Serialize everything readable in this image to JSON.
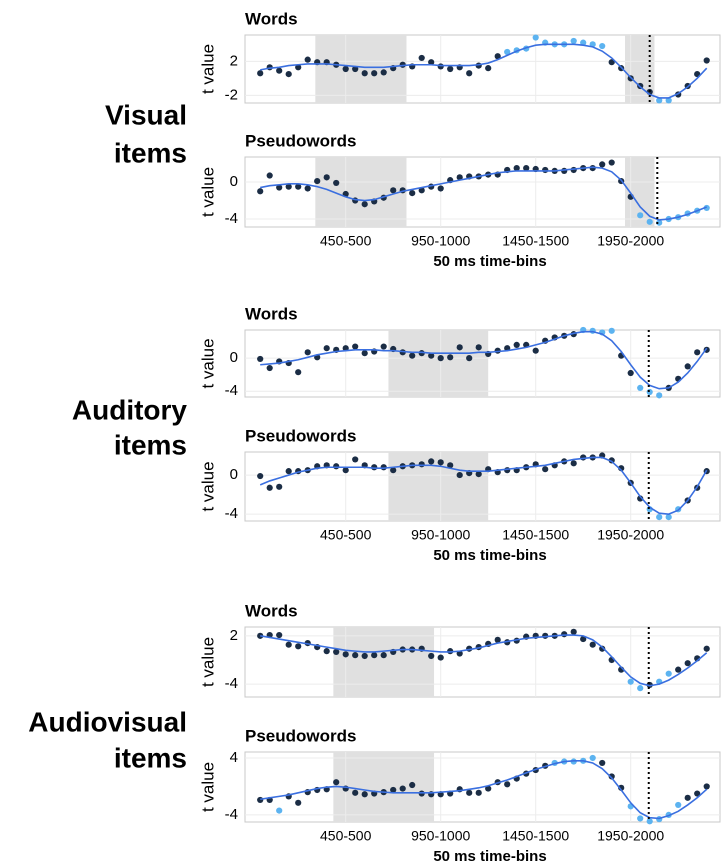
{
  "groups": [
    {
      "label": [
        "Visual",
        "items"
      ]
    },
    {
      "label": [
        "Auditory",
        "items"
      ]
    },
    {
      "label": [
        "Audiovisual",
        "items"
      ]
    }
  ],
  "chart_data": [
    {
      "type": "scatter",
      "title": "Words",
      "ylabel": "t value",
      "xlim": [
        -0.6,
        49.4
      ],
      "ylim": [
        -2.9,
        5.1
      ],
      "yticks": [
        -2,
        2
      ],
      "xgrid": [
        10,
        20,
        30,
        40
      ],
      "shaded": [
        [
          6.8,
          16.4
        ],
        [
          39.4,
          42.5
        ]
      ],
      "vline": 42,
      "x": [
        1,
        2,
        3,
        4,
        5,
        6,
        7,
        8,
        9,
        10,
        11,
        12,
        13,
        14,
        15,
        16,
        17,
        18,
        19,
        20,
        21,
        22,
        23,
        24,
        25,
        26,
        27,
        28,
        29,
        30,
        31,
        32,
        33,
        34,
        35,
        36,
        37,
        38,
        39,
        40,
        41,
        42,
        43,
        44,
        45,
        46,
        47,
        48
      ],
      "series": [
        {
          "color": "#1b2d45",
          "highlight_color": "#5cb3f0",
          "highlight": [
            26,
            27,
            28,
            29,
            30,
            31,
            32,
            33,
            34,
            35,
            36,
            42,
            43
          ],
          "values": [
            0.6,
            1.3,
            0.9,
            0.5,
            1.3,
            2.2,
            1.9,
            1.9,
            1.6,
            1.1,
            1.1,
            0.6,
            0.6,
            0.7,
            1.2,
            1.6,
            1.4,
            2.4,
            1.9,
            1.4,
            1.1,
            1.3,
            0.6,
            1.5,
            1.2,
            2.6,
            3.1,
            3.3,
            3.5,
            4.8,
            4.2,
            4.0,
            4.0,
            4.4,
            4.2,
            4.0,
            3.8,
            1.9,
            1.2,
            0.0,
            -0.9,
            -1.6,
            -2.6,
            -2.6,
            -1.9,
            -0.9,
            0.5,
            2.1
          ]
        },
        {
          "style": "line",
          "color": "#3a6fe0",
          "values": [
            1.0,
            1.2,
            1.3,
            1.5,
            1.6,
            1.7,
            1.7,
            1.7,
            1.6,
            1.5,
            1.4,
            1.3,
            1.3,
            1.3,
            1.4,
            1.5,
            1.6,
            1.6,
            1.6,
            1.5,
            1.5,
            1.5,
            1.5,
            1.6,
            1.8,
            2.2,
            2.7,
            3.2,
            3.6,
            3.9,
            4.0,
            4.0,
            4.0,
            4.0,
            3.9,
            3.7,
            3.2,
            2.4,
            1.3,
            0.1,
            -1.0,
            -1.9,
            -2.3,
            -2.3,
            -1.8,
            -1.0,
            0.0,
            1.2
          ]
        }
      ]
    },
    {
      "type": "scatter",
      "title": "Pseudowords",
      "ylabel": "t value",
      "xlabel": "50 ms time-bins",
      "xlim": [
        -0.6,
        49.4
      ],
      "ylim": [
        -4.86,
        2.7
      ],
      "yticks": [
        -4,
        0
      ],
      "xticks": [
        {
          "value": 10,
          "label": "450-500"
        },
        {
          "value": 20,
          "label": "950-1000"
        },
        {
          "value": 30,
          "label": "1450-1500"
        },
        {
          "value": 40,
          "label": "1950-2000"
        }
      ],
      "shaded": [
        [
          6.8,
          16.4
        ],
        [
          39.4,
          42.5
        ]
      ],
      "vline": 42.8,
      "x": [
        1,
        2,
        3,
        4,
        5,
        6,
        7,
        8,
        9,
        10,
        11,
        12,
        13,
        14,
        15,
        16,
        17,
        18,
        19,
        20,
        21,
        22,
        23,
        24,
        25,
        26,
        27,
        28,
        29,
        30,
        31,
        32,
        33,
        34,
        35,
        36,
        37,
        38,
        39,
        40,
        41,
        42,
        43,
        44,
        45,
        46,
        47,
        48
      ],
      "series": [
        {
          "color": "#1b2d45",
          "highlight_color": "#5cb3f0",
          "highlight": [
            40,
            41,
            42,
            43,
            44,
            45,
            46,
            47
          ],
          "values": [
            -1.0,
            0.7,
            -0.6,
            -0.5,
            -0.5,
            -0.7,
            0.1,
            0.5,
            -0.1,
            -1.3,
            -2.0,
            -2.4,
            -2.1,
            -1.7,
            -0.9,
            -0.9,
            -1.2,
            -0.9,
            -0.5,
            -0.7,
            0.2,
            0.5,
            0.6,
            0.6,
            0.8,
            0.8,
            1.3,
            1.5,
            1.5,
            1.4,
            1.3,
            1.2,
            1.2,
            1.3,
            1.5,
            1.5,
            1.9,
            2.1,
            0.1,
            -1.6,
            -3.6,
            -4.3,
            -4.4,
            -4.0,
            -3.8,
            -3.4,
            -3.1,
            -2.8
          ]
        },
        {
          "style": "line",
          "color": "#3a6fe0",
          "values": [
            -0.6,
            -0.4,
            -0.3,
            -0.2,
            -0.2,
            -0.3,
            -0.5,
            -0.8,
            -1.2,
            -1.6,
            -1.9,
            -2.0,
            -1.9,
            -1.6,
            -1.3,
            -1.0,
            -0.8,
            -0.6,
            -0.4,
            -0.2,
            0.0,
            0.2,
            0.4,
            0.6,
            0.8,
            1.0,
            1.1,
            1.2,
            1.2,
            1.2,
            1.2,
            1.2,
            1.3,
            1.4,
            1.5,
            1.6,
            1.5,
            1.1,
            0.2,
            -1.2,
            -2.7,
            -3.7,
            -4.1,
            -4.0,
            -3.8,
            -3.5,
            -3.1,
            -2.7
          ]
        }
      ]
    },
    {
      "type": "scatter",
      "title": "Words",
      "ylabel": "t value",
      "xlim": [
        -0.6,
        49.4
      ],
      "ylim": [
        -4.7,
        3.4
      ],
      "yticks": [
        -4,
        0
      ],
      "xgrid": [
        10,
        20,
        30,
        40
      ],
      "shaded": [
        [
          14.5,
          25
        ]
      ],
      "vline": 41.9,
      "x": [
        1,
        2,
        3,
        4,
        5,
        6,
        7,
        8,
        9,
        10,
        11,
        12,
        13,
        14,
        15,
        16,
        17,
        18,
        19,
        20,
        21,
        22,
        23,
        24,
        25,
        26,
        27,
        28,
        29,
        30,
        31,
        32,
        33,
        34,
        35,
        36,
        37,
        38,
        39,
        40,
        41,
        42,
        43,
        44,
        45,
        46,
        47,
        48
      ],
      "series": [
        {
          "color": "#1b2d45",
          "highlight_color": "#5cb3f0",
          "highlight": [
            34,
            35,
            36,
            37,
            40,
            41,
            42
          ],
          "values": [
            -0.1,
            -1.2,
            -0.4,
            -0.6,
            -1.7,
            0.7,
            0.1,
            1.2,
            1.0,
            1.2,
            1.4,
            0.6,
            0.8,
            1.4,
            1.1,
            0.7,
            0.3,
            0.6,
            0.3,
            0.0,
            0.1,
            1.3,
            0.0,
            1.3,
            0.5,
            0.9,
            1.2,
            1.6,
            1.6,
            0.9,
            2.1,
            2.5,
            2.7,
            2.9,
            3.4,
            3.3,
            3.1,
            3.3,
            0.3,
            -1.8,
            -3.6,
            -4.1,
            -4.5,
            -3.6,
            -2.5,
            -1.0,
            0.7,
            1.0
          ]
        },
        {
          "style": "line",
          "color": "#3a6fe0",
          "values": [
            -0.8,
            -0.7,
            -0.6,
            -0.4,
            -0.2,
            0.1,
            0.4,
            0.6,
            0.8,
            0.9,
            1.0,
            1.0,
            1.0,
            0.9,
            0.9,
            0.8,
            0.7,
            0.7,
            0.6,
            0.6,
            0.6,
            0.6,
            0.6,
            0.7,
            0.7,
            0.8,
            0.9,
            1.1,
            1.3,
            1.6,
            1.9,
            2.3,
            2.7,
            3.0,
            3.2,
            3.2,
            2.9,
            2.1,
            0.8,
            -0.8,
            -2.3,
            -3.3,
            -3.7,
            -3.6,
            -2.9,
            -1.8,
            -0.4,
            1.2
          ]
        }
      ]
    },
    {
      "type": "scatter",
      "title": "Pseudowords",
      "ylabel": "t value",
      "xlabel": "50 ms time-bins",
      "xlim": [
        -0.6,
        49.4
      ],
      "ylim": [
        -4.7,
        2.36
      ],
      "yticks": [
        -4,
        0
      ],
      "xticks": [
        {
          "value": 10,
          "label": "450-500"
        },
        {
          "value": 20,
          "label": "950-1000"
        },
        {
          "value": 30,
          "label": "1450-1500"
        },
        {
          "value": 40,
          "label": "1950-2000"
        }
      ],
      "shaded": [
        [
          14.5,
          25
        ]
      ],
      "vline": 41.9,
      "x": [
        1,
        2,
        3,
        4,
        5,
        6,
        7,
        8,
        9,
        10,
        11,
        12,
        13,
        14,
        15,
        16,
        17,
        18,
        19,
        20,
        21,
        22,
        23,
        24,
        25,
        26,
        27,
        28,
        29,
        30,
        31,
        32,
        33,
        34,
        35,
        36,
        37,
        38,
        39,
        40,
        41,
        42,
        43,
        44,
        45,
        46,
        47,
        48
      ],
      "series": [
        {
          "color": "#1b2d45",
          "highlight_color": "#5cb3f0",
          "highlight": [
            41,
            42,
            43,
            44
          ],
          "values": [
            -0.1,
            -1.3,
            -1.2,
            0.4,
            0.4,
            0.5,
            0.9,
            1.0,
            0.9,
            0.5,
            1.6,
            1.0,
            0.8,
            0.8,
            0.5,
            0.9,
            1.0,
            1.1,
            1.4,
            1.3,
            1.0,
            0.0,
            0.2,
            0.1,
            0.6,
            0.3,
            0.5,
            0.5,
            0.8,
            1.1,
            0.6,
            1.0,
            1.4,
            1.2,
            1.8,
            1.8,
            2.0,
            1.5,
            0.7,
            -0.8,
            -2.4,
            -3.5,
            -4.3,
            -4.3,
            -3.5,
            -2.6,
            -1.3,
            0.4
          ]
        },
        {
          "style": "line",
          "color": "#3a6fe0",
          "values": [
            -1.0,
            -0.6,
            -0.3,
            0.0,
            0.3,
            0.5,
            0.7,
            0.8,
            0.8,
            0.8,
            0.8,
            0.8,
            0.7,
            0.7,
            0.8,
            0.9,
            1.0,
            1.0,
            1.0,
            0.9,
            0.7,
            0.5,
            0.4,
            0.4,
            0.4,
            0.5,
            0.6,
            0.7,
            0.8,
            0.9,
            1.0,
            1.2,
            1.4,
            1.6,
            1.7,
            1.8,
            1.8,
            1.4,
            0.5,
            -0.8,
            -2.2,
            -3.3,
            -3.9,
            -4.0,
            -3.6,
            -2.6,
            -1.2,
            0.5
          ]
        }
      ]
    },
    {
      "type": "scatter",
      "title": "Words",
      "ylabel": "t value",
      "xlim": [
        -0.6,
        49.4
      ],
      "ylim": [
        -5.6,
        3.1
      ],
      "yticks": [
        -4,
        2
      ],
      "xgrid": [
        10,
        20,
        30,
        40
      ],
      "shaded": [
        [
          8.7,
          19.3
        ]
      ],
      "vline": 41.9,
      "x": [
        1,
        2,
        3,
        4,
        5,
        6,
        7,
        8,
        9,
        10,
        11,
        12,
        13,
        14,
        15,
        16,
        17,
        18,
        19,
        20,
        21,
        22,
        23,
        24,
        25,
        26,
        27,
        28,
        29,
        30,
        31,
        32,
        33,
        34,
        35,
        36,
        37,
        38,
        39,
        40,
        41,
        42,
        43,
        44,
        45,
        46,
        47,
        48
      ],
      "series": [
        {
          "color": "#1b2d45",
          "highlight_color": "#5cb3f0",
          "highlight": [
            39,
            40,
            42,
            43
          ],
          "values": [
            2.0,
            2.1,
            2.1,
            0.9,
            0.7,
            1.1,
            0.6,
            0.1,
            0.0,
            -0.3,
            -0.4,
            -0.5,
            -0.4,
            -0.4,
            0.0,
            0.3,
            0.3,
            0.4,
            -0.5,
            -0.7,
            0.1,
            -0.2,
            0.4,
            0.6,
            1.0,
            1.5,
            1.2,
            1.4,
            1.9,
            2.0,
            2.0,
            2.0,
            2.2,
            2.5,
            1.6,
            0.9,
            0.4,
            -1.0,
            -2.2,
            -3.7,
            -4.5,
            -4.1,
            -3.7,
            -2.7,
            -2.2,
            -1.4,
            -0.8,
            0.4
          ]
        },
        {
          "style": "line",
          "color": "#3a6fe0",
          "values": [
            2.0,
            1.8,
            1.6,
            1.4,
            1.2,
            1.0,
            0.8,
            0.6,
            0.4,
            0.2,
            0.1,
            0.0,
            0.0,
            0.1,
            0.2,
            0.3,
            0.3,
            0.2,
            0.1,
            0.0,
            0.0,
            0.1,
            0.3,
            0.5,
            0.8,
            1.1,
            1.3,
            1.5,
            1.7,
            1.8,
            1.9,
            2.0,
            2.1,
            2.1,
            2.0,
            1.5,
            0.6,
            -0.6,
            -1.9,
            -3.1,
            -3.9,
            -4.2,
            -4.0,
            -3.5,
            -2.8,
            -2.0,
            -1.1,
            -0.1
          ]
        }
      ]
    },
    {
      "type": "scatter",
      "title": "Pseudowords",
      "ylabel": "t value",
      "xlabel": "50 ms time-bins",
      "xlim": [
        -0.6,
        49.4
      ],
      "ylim": [
        -5,
        4.84
      ],
      "yticks": [
        -4,
        4
      ],
      "xticks": [
        {
          "value": 10,
          "label": "450-500"
        },
        {
          "value": 20,
          "label": "950-1000"
        },
        {
          "value": 30,
          "label": "1450-1500"
        },
        {
          "value": 40,
          "label": "1950-2000"
        }
      ],
      "shaded": [
        [
          8.7,
          19.3
        ]
      ],
      "vline": 41.9,
      "x": [
        1,
        2,
        3,
        4,
        5,
        6,
        7,
        8,
        9,
        10,
        11,
        12,
        13,
        14,
        15,
        16,
        17,
        18,
        19,
        20,
        21,
        22,
        23,
        24,
        25,
        26,
        27,
        28,
        29,
        30,
        31,
        32,
        33,
        34,
        35,
        36,
        37,
        38,
        39,
        40,
        41,
        42,
        43,
        44,
        45,
        46,
        47,
        48
      ],
      "series": [
        {
          "color": "#1b2d45",
          "highlight_color": "#5cb3f0",
          "highlight": [
            2,
            31,
            32,
            33,
            34,
            35,
            39,
            40,
            41,
            42,
            43,
            44
          ],
          "values": [
            -1.9,
            -1.9,
            -3.4,
            -1.4,
            -2.3,
            -0.8,
            -0.5,
            -0.4,
            0.6,
            -0.3,
            -0.9,
            -1.1,
            -1.0,
            -0.8,
            -0.5,
            -0.3,
            0.2,
            -1.0,
            -1.1,
            -1.1,
            -1.0,
            -0.4,
            -0.9,
            -0.9,
            -0.3,
            0.6,
            0.3,
            1.1,
            1.8,
            2.3,
            2.9,
            3.3,
            3.5,
            3.5,
            3.6,
            4.0,
            3.3,
            1.4,
            -0.2,
            -2.8,
            -4.5,
            -4.9,
            -4.6,
            -4.0,
            -2.6,
            -1.6,
            -1.0,
            0.0
          ]
        },
        {
          "style": "line",
          "color": "#3a6fe0",
          "values": [
            -1.8,
            -1.6,
            -1.4,
            -1.2,
            -0.9,
            -0.6,
            -0.3,
            -0.1,
            0.0,
            -0.1,
            -0.3,
            -0.5,
            -0.7,
            -0.8,
            -0.9,
            -0.9,
            -0.9,
            -0.9,
            -0.9,
            -0.8,
            -0.7,
            -0.6,
            -0.4,
            -0.2,
            0.1,
            0.5,
            0.9,
            1.4,
            1.9,
            2.4,
            2.8,
            3.2,
            3.5,
            3.6,
            3.6,
            3.3,
            2.5,
            1.2,
            -0.5,
            -2.3,
            -3.7,
            -4.4,
            -4.5,
            -4.1,
            -3.5,
            -2.6,
            -1.6,
            -0.4
          ]
        }
      ]
    }
  ]
}
